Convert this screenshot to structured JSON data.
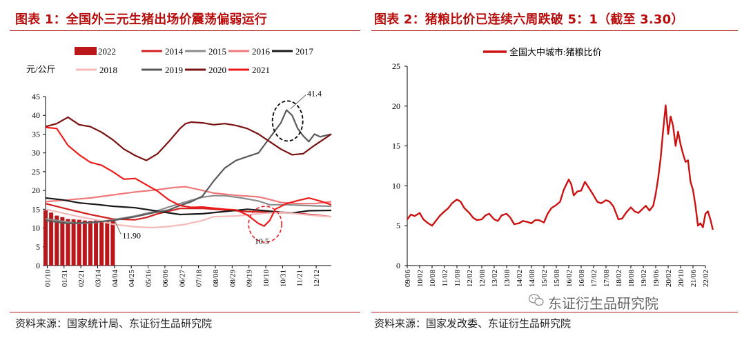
{
  "panel1": {
    "title": "图表 1：全国外三元生猪出场价震荡偏弱运行",
    "source": "资料来源：国家统计局、东证衍生品研究院",
    "unit_label": "元/公斤"
  },
  "panel2": {
    "title": "图表 2：猪粮比价已连续六周跌破 5：1（截至 3.30）",
    "source": "资料来源：国家发改委、东证衍生品研究院",
    "watermark": "东证衍生品研究院"
  },
  "colors": {
    "title": "#b80d0d",
    "rule": "#b0191a"
  },
  "chart_data": [
    {
      "type": "line",
      "ylim": [
        0,
        45
      ],
      "yticks": [
        0,
        5,
        10,
        15,
        20,
        25,
        30,
        35,
        40,
        45
      ],
      "x_ticks": [
        "01/10",
        "01/31",
        "02/21",
        "03/14",
        "04/04",
        "04/25",
        "05/16",
        "06/06",
        "06/27",
        "07/18",
        "08/08",
        "08/29",
        "09/19",
        "10/10",
        "10/31",
        "11/21",
        "12/12"
      ],
      "x_count": 52,
      "legend_position": "top",
      "annotations": [
        {
          "text": "41.4",
          "target": "2019 peak"
        },
        {
          "text": "10.5",
          "target": "2021 trough"
        },
        {
          "text": "11.90",
          "target": "2022 latest"
        }
      ],
      "series": [
        {
          "name": "2022",
          "kind": "bar",
          "color": "#b9171a",
          "values": [
            14.7,
            14.1,
            13.3,
            12.9,
            12.4,
            12.3,
            12.2,
            12.0,
            11.9,
            12.0,
            11.9,
            11.9,
            11.9
          ]
        },
        {
          "name": "2014",
          "color": "#d42020",
          "points": [
            [
              0,
              16.5
            ],
            [
              4,
              15.0
            ],
            [
              8,
              13.6
            ],
            [
              12,
              12.4
            ],
            [
              16,
              12.2
            ],
            [
              18,
              12.8
            ],
            [
              20,
              13.8
            ],
            [
              24,
              15.2
            ],
            [
              28,
              15.2
            ],
            [
              32,
              14.8
            ],
            [
              36,
              14.4
            ],
            [
              40,
              14.2
            ],
            [
              44,
              14.0
            ],
            [
              48,
              13.5
            ],
            [
              51,
              13.0
            ]
          ]
        },
        {
          "name": "2015",
          "color": "#8c8c8c",
          "points": [
            [
              0,
              12.5
            ],
            [
              3,
              11.8
            ],
            [
              6,
              11.2
            ],
            [
              9,
              11.5
            ],
            [
              12,
              12.2
            ],
            [
              16,
              13.2
            ],
            [
              20,
              14.6
            ],
            [
              22,
              15.6
            ],
            [
              24,
              16.5
            ],
            [
              26,
              17.4
            ],
            [
              28,
              18.2
            ],
            [
              30,
              18.6
            ],
            [
              32,
              18.6
            ],
            [
              35,
              18.0
            ],
            [
              38,
              17.2
            ],
            [
              40,
              16.2
            ],
            [
              43,
              16.2
            ],
            [
              46,
              16.0
            ],
            [
              48,
              15.9
            ],
            [
              51,
              15.8
            ]
          ]
        },
        {
          "name": "2016",
          "color": "#f07878",
          "points": [
            [
              0,
              17.0
            ],
            [
              4,
              17.5
            ],
            [
              8,
              18.0
            ],
            [
              12,
              18.8
            ],
            [
              16,
              19.6
            ],
            [
              20,
              20.2
            ],
            [
              23,
              20.8
            ],
            [
              25,
              21.0
            ],
            [
              28,
              20.0
            ],
            [
              30,
              19.3
            ],
            [
              34,
              18.7
            ],
            [
              38,
              18.3
            ],
            [
              40,
              17.6
            ],
            [
              42,
              16.8
            ],
            [
              45,
              16.5
            ],
            [
              48,
              16.5
            ],
            [
              51,
              17.0
            ]
          ]
        },
        {
          "name": "2017",
          "color": "#1a1a1a",
          "points": [
            [
              0,
              18.0
            ],
            [
              3,
              17.5
            ],
            [
              6,
              16.7
            ],
            [
              9,
              16.3
            ],
            [
              12,
              15.8
            ],
            [
              16,
              15.4
            ],
            [
              20,
              14.5
            ],
            [
              24,
              13.6
            ],
            [
              28,
              13.8
            ],
            [
              32,
              14.4
            ],
            [
              36,
              15.0
            ],
            [
              40,
              14.5
            ],
            [
              44,
              14.0
            ],
            [
              47,
              14.6
            ],
            [
              51,
              14.7
            ]
          ]
        },
        {
          "name": "2018",
          "color": "#f5b9b9",
          "points": [
            [
              0,
              15.0
            ],
            [
              3,
              14.0
            ],
            [
              6,
              13.0
            ],
            [
              9,
              12.2
            ],
            [
              12,
              11.0
            ],
            [
              16,
              10.3
            ],
            [
              19,
              10.1
            ],
            [
              22,
              10.4
            ],
            [
              25,
              11.0
            ],
            [
              28,
              12.0
            ],
            [
              30,
              13.0
            ],
            [
              34,
              13.2
            ],
            [
              38,
              13.8
            ],
            [
              42,
              14.2
            ],
            [
              46,
              13.6
            ],
            [
              49,
              13.2
            ],
            [
              51,
              13.0
            ]
          ]
        },
        {
          "name": "2019",
          "color": "#5a5a5a",
          "points": [
            [
              0,
              12.0
            ],
            [
              4,
              11.2
            ],
            [
              8,
              11.5
            ],
            [
              12,
              12.0
            ],
            [
              16,
              13.0
            ],
            [
              19,
              14.0
            ],
            [
              22,
              14.8
            ],
            [
              24,
              16.0
            ],
            [
              26,
              17.0
            ],
            [
              28,
              18.5
            ],
            [
              30,
              22.5
            ],
            [
              32,
              26.0
            ],
            [
              34,
              28.0
            ],
            [
              36,
              29.0
            ],
            [
              38,
              30.0
            ],
            [
              40,
              34.0
            ],
            [
              41,
              36.0
            ],
            [
              42,
              38.0
            ],
            [
              43,
              41.4
            ],
            [
              44,
              40.0
            ],
            [
              45,
              36.5
            ],
            [
              46,
              34.5
            ],
            [
              47,
              33.0
            ],
            [
              48,
              35.0
            ],
            [
              49,
              34.3
            ],
            [
              51,
              35.0
            ]
          ]
        },
        {
          "name": "2020",
          "color": "#7a1010",
          "points": [
            [
              0,
              37.0
            ],
            [
              2,
              37.8
            ],
            [
              4,
              39.5
            ],
            [
              6,
              37.5
            ],
            [
              8,
              37.0
            ],
            [
              10,
              35.5
            ],
            [
              12,
              33.5
            ],
            [
              14,
              31.0
            ],
            [
              16,
              29.3
            ],
            [
              18,
              28.0
            ],
            [
              20,
              29.8
            ],
            [
              22,
              33.0
            ],
            [
              24,
              36.5
            ],
            [
              25,
              37.8
            ],
            [
              26,
              38.2
            ],
            [
              28,
              38.0
            ],
            [
              30,
              37.5
            ],
            [
              32,
              37.8
            ],
            [
              34,
              37.3
            ],
            [
              36,
              36.5
            ],
            [
              38,
              35.0
            ],
            [
              40,
              33.0
            ],
            [
              42,
              31.0
            ],
            [
              44,
              29.5
            ],
            [
              46,
              29.8
            ],
            [
              48,
              32.0
            ],
            [
              50,
              34.0
            ],
            [
              51,
              35.0
            ]
          ]
        },
        {
          "name": "2021",
          "color": "#ee1a1a",
          "points": [
            [
              0,
              36.8
            ],
            [
              2,
              36.5
            ],
            [
              4,
              32.0
            ],
            [
              6,
              29.5
            ],
            [
              8,
              27.5
            ],
            [
              10,
              26.7
            ],
            [
              12,
              25.0
            ],
            [
              14,
              23.0
            ],
            [
              16,
              23.2
            ],
            [
              18,
              21.5
            ],
            [
              20,
              19.8
            ],
            [
              22,
              17.5
            ],
            [
              24,
              16.0
            ],
            [
              26,
              15.5
            ],
            [
              28,
              15.6
            ],
            [
              30,
              15.3
            ],
            [
              32,
              15.0
            ],
            [
              34,
              14.8
            ],
            [
              36,
              13.5
            ],
            [
              38,
              11.2
            ],
            [
              39,
              10.5
            ],
            [
              40,
              12.0
            ],
            [
              41,
              15.0
            ],
            [
              43,
              16.5
            ],
            [
              45,
              17.3
            ],
            [
              47,
              18.0
            ],
            [
              49,
              17.2
            ],
            [
              51,
              16.2
            ]
          ]
        }
      ]
    },
    {
      "type": "line",
      "ylim": [
        0,
        25
      ],
      "yticks": [
        0,
        5,
        10,
        15,
        20,
        25
      ],
      "x_ticks": [
        "09/06",
        "10/02",
        "10/08",
        "11/02",
        "11/08",
        "12/02",
        "12/08",
        "13/02",
        "13/08",
        "14/02",
        "14/08",
        "15/02",
        "15/08",
        "16/02",
        "16/08",
        "17/02",
        "17/08",
        "18/02",
        "18/08",
        "19/02",
        "19/06",
        "20/02",
        "20/10",
        "21/06",
        "22/02"
      ],
      "legend_position": "top",
      "series": [
        {
          "name": "全国大中城市:猪粮比价",
          "color": "#cc1111",
          "points": [
            [
              0.0,
              5.8
            ],
            [
              0.3,
              6.4
            ],
            [
              0.6,
              6.2
            ],
            [
              1.0,
              6.6
            ],
            [
              1.3,
              5.8
            ],
            [
              1.6,
              5.4
            ],
            [
              2.0,
              5.0
            ],
            [
              2.3,
              5.6
            ],
            [
              2.6,
              6.2
            ],
            [
              3.0,
              6.8
            ],
            [
              3.3,
              7.2
            ],
            [
              3.6,
              7.8
            ],
            [
              4.0,
              8.3
            ],
            [
              4.3,
              8.0
            ],
            [
              4.6,
              7.2
            ],
            [
              5.0,
              6.6
            ],
            [
              5.3,
              6.0
            ],
            [
              5.6,
              5.7
            ],
            [
              6.0,
              5.8
            ],
            [
              6.3,
              6.3
            ],
            [
              6.6,
              6.5
            ],
            [
              7.0,
              5.8
            ],
            [
              7.3,
              5.6
            ],
            [
              7.6,
              6.3
            ],
            [
              8.0,
              6.5
            ],
            [
              8.3,
              6.0
            ],
            [
              8.6,
              5.2
            ],
            [
              9.0,
              5.3
            ],
            [
              9.3,
              5.6
            ],
            [
              9.6,
              5.5
            ],
            [
              10.0,
              5.3
            ],
            [
              10.3,
              5.7
            ],
            [
              10.6,
              5.7
            ],
            [
              11.0,
              5.4
            ],
            [
              11.3,
              6.5
            ],
            [
              11.6,
              7.2
            ],
            [
              12.0,
              7.6
            ],
            [
              12.3,
              8.0
            ],
            [
              12.6,
              9.5
            ],
            [
              13.0,
              10.8
            ],
            [
              13.2,
              10.2
            ],
            [
              13.4,
              8.8
            ],
            [
              13.7,
              9.3
            ],
            [
              14.0,
              9.4
            ],
            [
              14.3,
              10.5
            ],
            [
              14.6,
              9.8
            ],
            [
              15.0,
              8.8
            ],
            [
              15.3,
              8.0
            ],
            [
              15.6,
              7.8
            ],
            [
              16.0,
              8.2
            ],
            [
              16.3,
              8.0
            ],
            [
              16.6,
              7.4
            ],
            [
              17.0,
              5.8
            ],
            [
              17.3,
              5.9
            ],
            [
              17.6,
              6.6
            ],
            [
              18.0,
              7.3
            ],
            [
              18.3,
              6.8
            ],
            [
              18.6,
              6.6
            ],
            [
              19.0,
              7.2
            ],
            [
              19.2,
              7.5
            ],
            [
              19.5,
              6.9
            ],
            [
              19.8,
              7.5
            ],
            [
              20.0,
              9.0
            ],
            [
              20.2,
              11.0
            ],
            [
              20.4,
              13.5
            ],
            [
              20.6,
              17.0
            ],
            [
              20.8,
              20.1
            ],
            [
              21.0,
              16.5
            ],
            [
              21.2,
              18.7
            ],
            [
              21.4,
              17.5
            ],
            [
              21.6,
              15.0
            ],
            [
              21.8,
              16.8
            ],
            [
              22.0,
              15.2
            ],
            [
              22.2,
              14.0
            ],
            [
              22.4,
              13.0
            ],
            [
              22.6,
              13.2
            ],
            [
              22.8,
              10.5
            ],
            [
              23.0,
              9.5
            ],
            [
              23.2,
              7.5
            ],
            [
              23.4,
              5.0
            ],
            [
              23.6,
              5.3
            ],
            [
              23.8,
              4.8
            ],
            [
              24.0,
              6.5
            ],
            [
              24.2,
              6.8
            ],
            [
              24.4,
              5.8
            ],
            [
              24.6,
              4.5
            ]
          ]
        }
      ]
    }
  ]
}
